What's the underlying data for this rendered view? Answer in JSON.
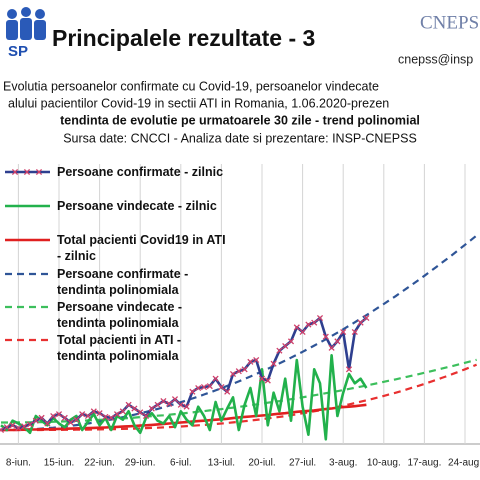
{
  "header": {
    "logo_text": "SP",
    "title": "Principalele rezultate - 3",
    "org": "CNEPSS",
    "email": "cnepss@insp",
    "subtitle_lines": [
      "Evolutia persoanelor confirmate cu Covid-19, persoanelor vindecate",
      "alului pacientilor Covid-19 in sectii ATI in Romania, 1.06.2020-prezen",
      "tendinta de evolutie pe urmatoarele 30 zile - trend polinomial",
      "Sursa date: CNCCI  -  Analiza date si prezentare: INSP-CNEPSS"
    ]
  },
  "chart_data": {
    "type": "line",
    "ylim": [
      0,
      3000
    ],
    "grid": true,
    "categories": [
      null,
      null,
      null,
      "8-iun.",
      null,
      null,
      null,
      null,
      null,
      null,
      "15-iun.",
      null,
      null,
      null,
      null,
      null,
      null,
      "22-iun.",
      null,
      null,
      null,
      null,
      null,
      null,
      "29-iun.",
      null,
      null,
      null,
      null,
      null,
      null,
      "6-iul.",
      null,
      null,
      null,
      null,
      null,
      null,
      "13-iul.",
      null,
      null,
      null,
      null,
      null,
      null,
      "20-iul.",
      null,
      null,
      null,
      null,
      null,
      null,
      "27-iul.",
      null,
      null,
      null,
      null,
      null,
      null,
      "3-aug.",
      null,
      null,
      null,
      null,
      null,
      null,
      "10-aug.",
      null,
      null,
      null,
      null,
      null,
      null,
      "17-aug.",
      null,
      null,
      null,
      null,
      null,
      null,
      "24-aug.",
      null,
      null
    ],
    "series": [
      {
        "name": "Persoane confirmate - zilnic",
        "color": "#2e3f8f",
        "marker": "x",
        "marker_color": "#d0406a",
        "dashed": false,
        "values": [
          150,
          180,
          200,
          170,
          190,
          210,
          250,
          280,
          220,
          300,
          320,
          280,
          230,
          260,
          320,
          300,
          350,
          330,
          290,
          280,
          320,
          350,
          420,
          380,
          340,
          300,
          380,
          420,
          460,
          430,
          480,
          420,
          400,
          560,
          600,
          610,
          620,
          700,
          610,
          560,
          750,
          780,
          800,
          880,
          900,
          700,
          680,
          860,
          1000,
          1050,
          1100,
          1250,
          1200,
          1280,
          1300,
          1350,
          1150,
          1030,
          1100,
          1200,
          800,
          1200,
          1300,
          1350,
          null,
          null,
          null,
          null,
          null,
          null,
          null,
          null,
          null,
          null,
          null,
          null,
          null,
          null,
          null,
          null,
          null,
          null,
          null
        ]
      },
      {
        "name": "Persoane vindecate - zilnic",
        "color": "#22b14c",
        "dashed": false,
        "values": [
          200,
          150,
          250,
          220,
          180,
          120,
          300,
          250,
          200,
          280,
          220,
          180,
          260,
          300,
          150,
          240,
          320,
          200,
          280,
          150,
          300,
          260,
          350,
          200,
          120,
          280,
          330,
          250,
          220,
          300,
          180,
          350,
          260,
          200,
          400,
          300,
          150,
          450,
          250,
          380,
          500,
          150,
          420,
          600,
          300,
          800,
          200,
          550,
          350,
          700,
          250,
          900,
          400,
          100,
          800,
          650,
          50,
          950,
          300,
          550,
          750,
          650,
          700,
          600,
          null,
          null,
          null,
          null,
          null,
          null,
          null,
          null,
          null,
          null,
          null,
          null,
          null,
          null,
          null,
          null,
          null,
          null,
          null
        ]
      },
      {
        "name": "Total pacienti Covid19 in ATI - zilnic",
        "color": "#e02020",
        "dashed": false,
        "values": [
          150,
          150,
          150,
          152,
          153,
          155,
          155,
          157,
          158,
          160,
          162,
          163,
          165,
          167,
          168,
          170,
          172,
          175,
          177,
          180,
          183,
          186,
          190,
          193,
          197,
          200,
          205,
          210,
          215,
          220,
          225,
          230,
          235,
          240,
          245,
          250,
          255,
          260,
          265,
          270,
          278,
          285,
          290,
          295,
          300,
          305,
          310,
          318,
          325,
          330,
          338,
          345,
          350,
          355,
          360,
          368,
          375,
          380,
          390,
          395,
          400,
          405,
          412,
          420,
          null,
          null,
          null,
          null,
          null,
          null,
          null,
          null,
          null,
          null,
          null,
          null,
          null,
          null,
          null,
          null,
          null,
          null,
          null
        ]
      },
      {
        "name": "Persoane confirmate - tendinta polinomiala",
        "color": "#2f5597",
        "dashed": true,
        "values": [
          150,
          150,
          151,
          153,
          155,
          158,
          161,
          165,
          170,
          175,
          181,
          188,
          195,
          202,
          211,
          220,
          229,
          240,
          250,
          262,
          274,
          287,
          300,
          314,
          329,
          344,
          360,
          376,
          393,
          411,
          429,
          448,
          467,
          488,
          508,
          530,
          552,
          574,
          598,
          622,
          646,
          671,
          697,
          723,
          750,
          778,
          806,
          835,
          864,
          894,
          925,
          956,
          988,
          1021,
          1054,
          1088,
          1122,
          1157,
          1193,
          1229,
          1266,
          1304,
          1342,
          1380,
          1420,
          1460,
          1500,
          1542,
          1583,
          1626,
          1669,
          1713,
          1757,
          1802,
          1848,
          1894,
          1941,
          1988,
          2036,
          2085,
          2134,
          2184,
          2234
        ]
      },
      {
        "name": "Persoane vindecate - tendinta polinomiala",
        "color": "#3cbf5c",
        "dashed": true,
        "values": [
          230,
          230,
          230,
          231,
          232,
          233,
          234,
          235,
          236,
          238,
          240,
          242,
          244,
          247,
          250,
          253,
          256,
          259,
          262,
          266,
          270,
          274,
          278,
          283,
          288,
          293,
          298,
          303,
          308,
          314,
          320,
          326,
          332,
          339,
          346,
          353,
          360,
          367,
          374,
          382,
          390,
          398,
          406,
          415,
          424,
          433,
          442,
          451,
          460,
          470,
          480,
          490,
          500,
          511,
          522,
          533,
          544,
          555,
          566,
          578,
          590,
          602,
          614,
          627,
          640,
          653,
          666,
          679,
          692,
          706,
          720,
          734,
          748,
          763,
          778,
          793,
          808,
          823,
          838,
          854,
          870,
          886,
          902
        ]
      },
      {
        "name": "Total pacienti in ATI - tendinta polinomiala",
        "color": "#e83030",
        "dashed": true,
        "values": [
          150,
          150,
          150,
          150,
          150,
          150,
          150,
          150,
          151,
          151,
          151,
          152,
          152,
          153,
          153,
          154,
          155,
          156,
          157,
          159,
          160,
          162,
          164,
          165,
          168,
          170,
          172,
          175,
          178,
          181,
          184,
          188,
          192,
          196,
          200,
          204,
          209,
          214,
          220,
          225,
          231,
          238,
          244,
          251,
          258,
          266,
          274,
          282,
          290,
          299,
          309,
          318,
          329,
          339,
          350,
          361,
          373,
          385,
          398,
          411,
          424,
          438,
          453,
          468,
          483,
          499,
          515,
          532,
          549,
          567,
          586,
          605,
          624,
          644,
          665,
          686,
          708,
          730,
          753,
          776,
          800,
          825,
          850
        ]
      }
    ]
  }
}
